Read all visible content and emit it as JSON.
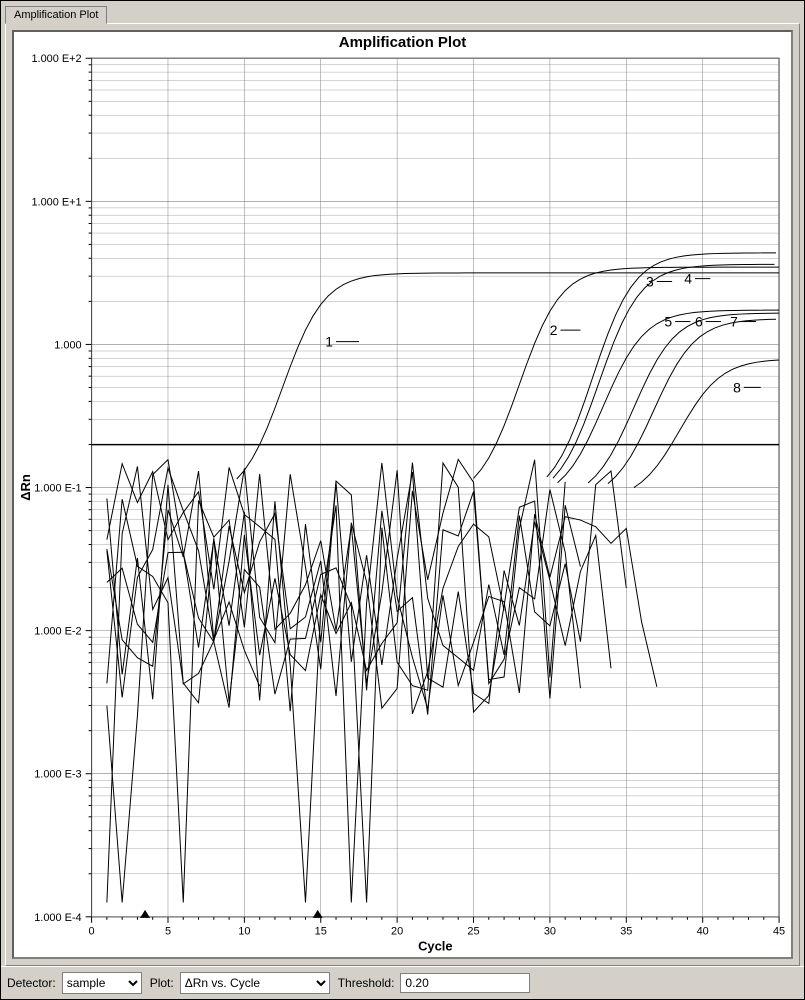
{
  "tab_label": "Amplification Plot",
  "chart": {
    "title": "Amplification Plot",
    "xlabel": "Cycle",
    "ylabel": "ΔRn",
    "xlim": [
      0,
      45
    ],
    "xtick_step": 5,
    "ylim_exp": [
      -4,
      2
    ],
    "ytick_labels": [
      "1.000 E-4",
      "1.000 E-3",
      "1.000 E-2",
      "1.000 E-1",
      "1.000",
      "1.000 E+1",
      "1.000 E+2"
    ],
    "threshold_exp": -0.7,
    "markers_x": [
      3.5,
      14.8
    ],
    "background_color": "#ffffff",
    "grid_color": "#808080",
    "line_color": "#000000",
    "line_width": 1,
    "title_fontsize": 15,
    "label_fontsize": 13,
    "tick_fontsize": 11,
    "curve_annotations": [
      {
        "label": "1",
        "x": 15.8,
        "y_exp": 0.02,
        "dash_to_x": 17.5
      },
      {
        "label": "2",
        "x": 30.5,
        "y_exp": 0.1,
        "dash_to_x": 32.0
      },
      {
        "label": "3",
        "x": 36.8,
        "y_exp": 0.44,
        "dash_to_x": 38.0
      },
      {
        "label": "4",
        "x": 39.3,
        "y_exp": 0.46,
        "dash_to_x": 40.5
      },
      {
        "label": "5",
        "x": 38.0,
        "y_exp": 0.16,
        "dash_to_x": 39.2
      },
      {
        "label": "6",
        "x": 40.0,
        "y_exp": 0.16,
        "dash_to_x": 41.2
      },
      {
        "label": "7",
        "x": 42.3,
        "y_exp": 0.16,
        "dash_to_x": 43.5
      },
      {
        "label": "8",
        "x": 42.5,
        "y_exp": -0.3,
        "dash_to_x": 43.8
      }
    ],
    "amp_curves": [
      {
        "id": 1,
        "Ct": 12.5,
        "plateau_exp": 0.5
      },
      {
        "id": 2,
        "Ct": 28.0,
        "plateau_exp": 0.54
      },
      {
        "id": 3,
        "Ct": 32.8,
        "plateau_exp": 0.64
      },
      {
        "id": 4,
        "Ct": 33.2,
        "plateau_exp": 0.56
      },
      {
        "id": 5,
        "Ct": 33.5,
        "plateau_exp": 0.24
      },
      {
        "id": 6,
        "Ct": 35.5,
        "plateau_exp": 0.22
      },
      {
        "id": 7,
        "Ct": 36.8,
        "plateau_exp": 0.18
      },
      {
        "id": 8,
        "Ct": 38.5,
        "plateau_exp": -0.1
      }
    ],
    "noise_series_seeds": [
      11,
      23,
      37,
      41,
      53,
      61,
      71,
      83
    ],
    "noise_low_exp": -2.6,
    "noise_high_exp": -0.8
  },
  "controls": {
    "detector_label": "Detector:",
    "detector_value": "sample",
    "plot_label": "Plot:",
    "plot_value": "ΔRn vs. Cycle",
    "threshold_label": "Threshold:",
    "threshold_value": "0.20"
  }
}
